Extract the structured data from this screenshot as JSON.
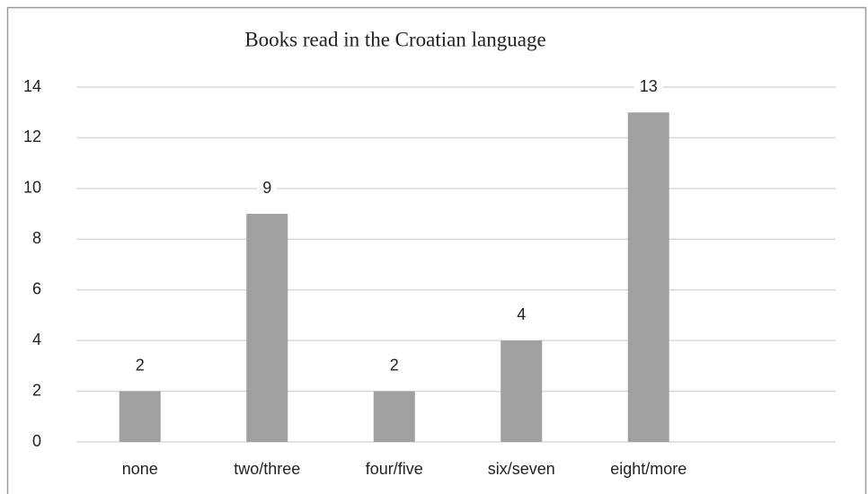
{
  "chart_data": {
    "type": "bar",
    "title": "Books read in the Croatian language",
    "categories": [
      "none",
      "two/three",
      "four/five",
      "six/seven",
      "eight/more"
    ],
    "values": [
      2,
      9,
      2,
      4,
      13
    ],
    "color": "#a0a0a0",
    "ylim": [
      0,
      14
    ],
    "yticks": [
      0,
      2,
      4,
      6,
      8,
      10,
      12,
      14
    ],
    "grid": true
  }
}
